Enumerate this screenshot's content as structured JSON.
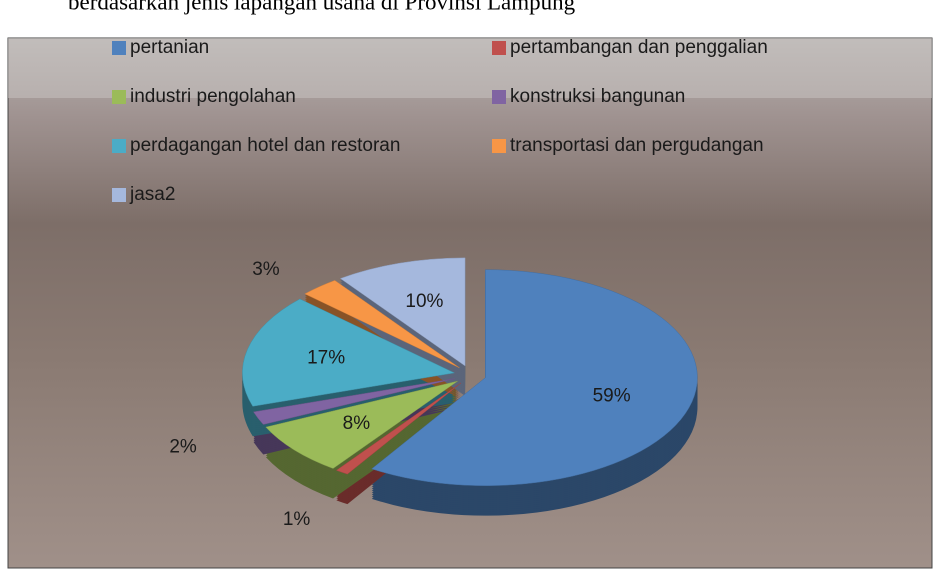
{
  "chart_data": {
    "type": "pie3d",
    "title": "berdasarkan jenis lapangan usaha di Provinsi Lampung",
    "categories": [
      "pertanian",
      "pertambangan dan penggalian",
      "industri pengolahan",
      "konstruksi bangunan",
      "perdagangan hotel dan restoran",
      "transportasi dan pergudangan",
      "jasa2"
    ],
    "values": [
      59,
      1,
      8,
      2,
      17,
      3,
      10
    ],
    "value_labels": [
      "59%",
      "1%",
      "8%",
      "2%",
      "17%",
      "3%",
      "10%"
    ],
    "colors": [
      "#4f81bd",
      "#c0504d",
      "#9bbb59",
      "#8064a2",
      "#4bacc6",
      "#f79646",
      "#a5b8dd"
    ],
    "legend": "top"
  }
}
